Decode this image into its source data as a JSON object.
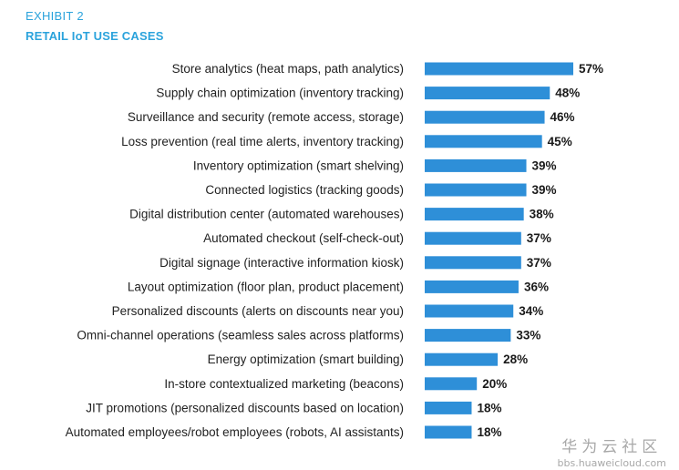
{
  "header": {
    "exhibit": "EXHIBIT 2",
    "title": "RETAIL IoT USE CASES"
  },
  "watermark": {
    "logo": "华为云社区",
    "url": "bbs.huaweicloud.com"
  },
  "colors": {
    "accent": "#2ba3dc",
    "bar": "#2e8fd8"
  },
  "chart_data": {
    "type": "bar",
    "orientation": "horizontal",
    "title": "RETAIL IoT USE CASES",
    "categories": [
      "Store analytics (heat maps, path analytics)",
      "Supply chain optimization (inventory tracking)",
      "Surveillance and security (remote access, storage)",
      "Loss prevention (real time alerts, inventory tracking)",
      "Inventory optimization (smart shelving)",
      "Connected logistics (tracking goods)",
      "Digital distribution center (automated warehouses)",
      "Automated checkout (self-check-out)",
      "Digital signage (interactive information kiosk)",
      "Layout optimization (floor plan, product placement)",
      "Personalized discounts (alerts on discounts near you)",
      "Omni-channel operations (seamless sales across platforms)",
      "Energy optimization (smart building)",
      "In-store contextualized marketing (beacons)",
      "JIT promotions (personalized discounts based on location)",
      "Automated employees/robot employees (robots, AI assistants)"
    ],
    "values": [
      57,
      48,
      46,
      45,
      39,
      39,
      38,
      37,
      37,
      36,
      34,
      33,
      28,
      20,
      18,
      18
    ],
    "value_labels": [
      "57%",
      "48%",
      "46%",
      "45%",
      "39%",
      "39%",
      "38%",
      "37%",
      "37%",
      "36%",
      "34%",
      "33%",
      "28%",
      "20%",
      "18%",
      "18%"
    ],
    "unit": "%",
    "grid": false,
    "legend": "none"
  }
}
